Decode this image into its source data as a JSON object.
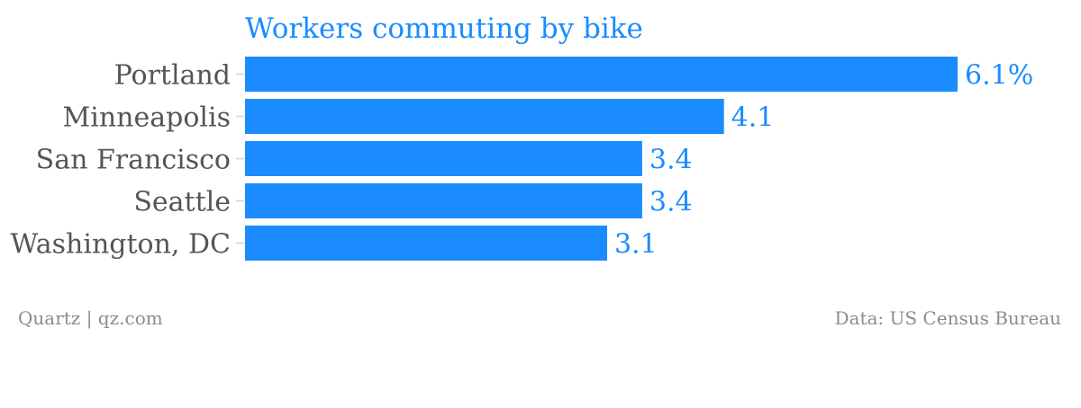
{
  "chart_data": {
    "type": "bar",
    "orientation": "horizontal",
    "title": "Workers commuting by bike",
    "categories": [
      "Portland",
      "Minneapolis",
      "San Francisco",
      "Seattle",
      "Washington, DC"
    ],
    "values": [
      6.1,
      4.1,
      3.4,
      3.4,
      3.1
    ],
    "value_labels": [
      "6.1%",
      "4.1",
      "3.4",
      "3.4",
      "3.1"
    ],
    "xlim": [
      0,
      6.1
    ],
    "grid": false,
    "legend": "none"
  },
  "footer": {
    "source_left": "Quartz | qz.com",
    "source_right": "Data: US Census Bureau"
  },
  "colors": {
    "bar": "#1a8cff",
    "title": "#1a8cff",
    "value_label": "#1a8cff",
    "category_label": "#555555",
    "axis_tick": "#dddddd",
    "footer": "#8c8c8c"
  }
}
